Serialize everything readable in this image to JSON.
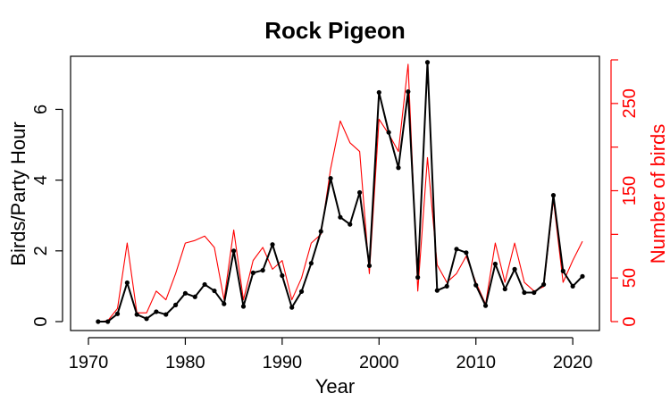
{
  "chart_data": {
    "type": "line",
    "title": "Rock Pigeon",
    "xlabel": "Year",
    "ylabel": "Birds/Party Hour",
    "y2label": "Number of birds",
    "xlim": [
      1970,
      2021
    ],
    "ylim": [
      0,
      7.4
    ],
    "y2lim": [
      0,
      300
    ],
    "x_ticks": [
      1970,
      1980,
      1990,
      2000,
      2010,
      2020
    ],
    "y_ticks": [
      0,
      2,
      4,
      6
    ],
    "y2_ticks": [
      0,
      50,
      150,
      250
    ],
    "colors": {
      "primary": "#000000",
      "secondary": "#ff0000"
    },
    "x": [
      1971,
      1972,
      1973,
      1974,
      1975,
      1976,
      1977,
      1978,
      1979,
      1980,
      1981,
      1982,
      1983,
      1984,
      1985,
      1986,
      1987,
      1988,
      1989,
      1990,
      1991,
      1992,
      1993,
      1994,
      1995,
      1996,
      1997,
      1998,
      1999,
      2000,
      2001,
      2002,
      2003,
      2004,
      2005,
      2006,
      2007,
      2008,
      2009,
      2010,
      2011,
      2012,
      2013,
      2014,
      2015,
      2016,
      2017,
      2018,
      2019,
      2020,
      2021
    ],
    "series": [
      {
        "axis": "left",
        "style": "line-points",
        "values": [
          0.0,
          0.0,
          0.22,
          1.1,
          0.2,
          0.08,
          0.28,
          0.2,
          0.47,
          0.8,
          0.7,
          1.05,
          0.87,
          0.5,
          2.0,
          0.43,
          1.38,
          1.45,
          2.18,
          1.3,
          0.4,
          0.85,
          1.65,
          2.55,
          4.05,
          2.95,
          2.75,
          3.65,
          1.58,
          6.48,
          5.35,
          4.35,
          6.5,
          1.25,
          7.33,
          0.88,
          1.0,
          2.05,
          1.95,
          1.03,
          0.45,
          1.63,
          0.92,
          1.48,
          0.82,
          0.82,
          1.05,
          3.57,
          1.43,
          1.0,
          1.28
        ]
      },
      {
        "axis": "right",
        "style": "line",
        "values": [
          0,
          1,
          15,
          90,
          10,
          10,
          35,
          25,
          55,
          90,
          93,
          98,
          85,
          25,
          105,
          25,
          70,
          85,
          60,
          70,
          25,
          50,
          90,
          100,
          175,
          230,
          205,
          195,
          55,
          232,
          215,
          195,
          295,
          35,
          188,
          65,
          45,
          55,
          75,
          45,
          20,
          90,
          45,
          90,
          45,
          35,
          40,
          140,
          45,
          70,
          92
        ]
      }
    ]
  }
}
